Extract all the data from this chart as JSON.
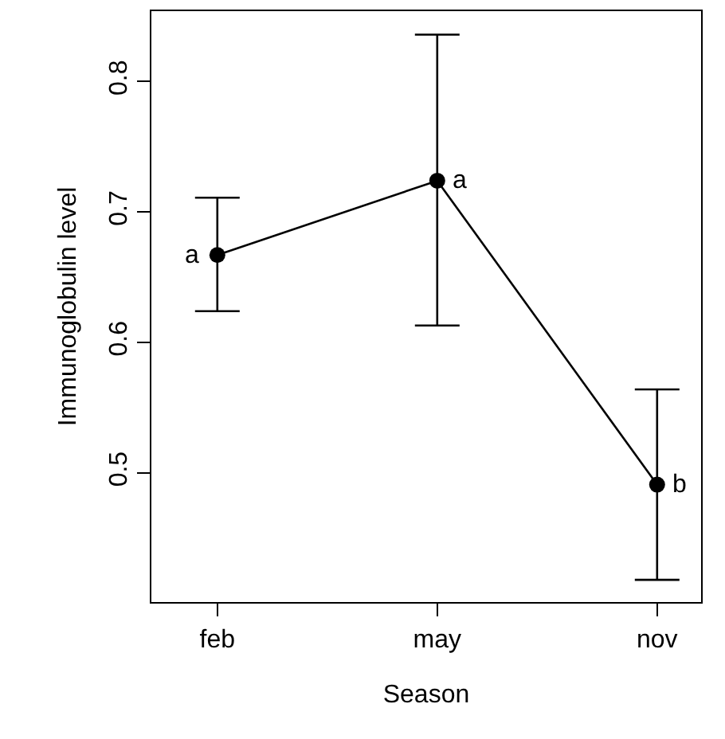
{
  "chart_data": {
    "type": "line",
    "xlabel": "Season",
    "ylabel": "Immunoglobulin level",
    "categories": [
      "feb",
      "may",
      "nov"
    ],
    "series": [
      {
        "color": "#000000",
        "values": [
          0.667,
          0.724,
          0.491
        ],
        "errors": [
          [
            0.624,
            0.711
          ],
          [
            0.613,
            0.836
          ],
          [
            0.418,
            0.564
          ]
        ]
      }
    ],
    "ylim": [
      0.401,
      0.854
    ],
    "yticks": [
      0.5,
      0.6,
      0.7,
      0.8
    ],
    "marker": "circle",
    "line_style": "solid",
    "grid": false,
    "legend": false,
    "annotations": [
      {
        "text": "a",
        "x": "feb",
        "y": 0.667
      },
      {
        "text": "a",
        "x": "may",
        "y": 0.724
      },
      {
        "text": "b",
        "x": "nov",
        "y": 0.491
      }
    ]
  }
}
